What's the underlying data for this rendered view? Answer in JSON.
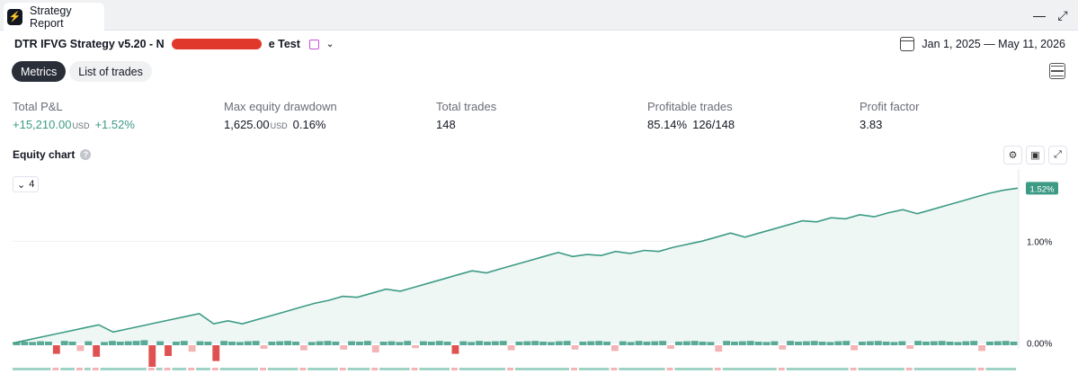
{
  "window": {
    "tab_title": "Strategy Report",
    "minimize_icon": "minimize-icon",
    "maximize_icon": "maximize-icon"
  },
  "header": {
    "strategy_prefix": "DTR IFVG Strategy v5.20 - N",
    "strategy_suffix": "e Test",
    "date_range": "Jan 1, 2025 — May 11, 2026"
  },
  "tabs": [
    {
      "label": "Metrics",
      "active": true
    },
    {
      "label": "List of trades",
      "active": false
    }
  ],
  "metrics": {
    "total_pnl": {
      "label": "Total P&L",
      "value": "+15,210.00",
      "unit": "USD",
      "pct": "+1.52%"
    },
    "max_dd": {
      "label": "Max equity drawdown",
      "value": "1,625.00",
      "unit": "USD",
      "pct": "0.16%"
    },
    "total_trades": {
      "label": "Total trades",
      "value": "148"
    },
    "profitable": {
      "label": "Profitable trades",
      "pct": "85.14%",
      "ratio": "126/148"
    },
    "profit_factor": {
      "label": "Profit factor",
      "value": "3.83"
    }
  },
  "equity_chart": {
    "title": "Equity chart",
    "help": "?",
    "collapse_count": "4"
  },
  "colors": {
    "accent_green": "#3d9b85",
    "loss_red": "#e05252",
    "loss_red_light": "#f2b4b4",
    "win_green_light": "#9fd3c5"
  },
  "chart_data": {
    "type": "line",
    "series": [
      {
        "values": [
          0.0,
          0.03,
          0.06,
          0.09,
          0.12,
          0.15,
          0.18,
          0.11,
          0.14,
          0.17,
          0.2,
          0.23,
          0.26,
          0.29,
          0.19,
          0.22,
          0.19,
          0.23,
          0.27,
          0.31,
          0.35,
          0.39,
          0.42,
          0.46,
          0.45,
          0.49,
          0.53,
          0.51,
          0.55,
          0.59,
          0.63,
          0.67,
          0.71,
          0.69,
          0.73,
          0.77,
          0.81,
          0.85,
          0.89,
          0.85,
          0.87,
          0.86,
          0.9,
          0.88,
          0.91,
          0.9,
          0.94,
          0.97,
          1.0,
          1.04,
          1.08,
          1.04,
          1.08,
          1.12,
          1.16,
          1.2,
          1.19,
          1.23,
          1.22,
          1.26,
          1.24,
          1.28,
          1.31,
          1.27,
          1.31,
          1.35,
          1.39,
          1.43,
          1.47,
          1.5,
          1.52
        ]
      }
    ],
    "y_ticks": [
      "1.00%",
      "0.00%"
    ],
    "y_tick_values": [
      1.0,
      0.0
    ],
    "last_value_label": "1.52%",
    "ylim": [
      -0.02,
      1.62
    ],
    "trade_bars": [
      0.4,
      0.5,
      0.45,
      0.55,
      0.5,
      -1.2,
      0.6,
      0.5,
      -0.8,
      0.55,
      -1.6,
      0.45,
      0.6,
      0.5,
      0.55,
      0.6,
      0.7,
      -3.0,
      0.55,
      -1.5,
      0.5,
      0.6,
      -0.9,
      0.55,
      0.5,
      -2.2,
      0.6,
      0.5,
      0.45,
      0.55,
      0.6,
      -0.5,
      0.5,
      0.55,
      0.6,
      0.5,
      -0.7,
      0.45,
      0.55,
      0.6,
      0.5,
      -0.6,
      0.55,
      0.5,
      0.6,
      -1.0,
      0.5,
      0.55,
      0.45,
      0.6,
      -0.4,
      0.55,
      0.5,
      0.6,
      0.5,
      -1.2,
      0.55,
      0.45,
      0.6,
      0.5,
      0.55,
      0.6,
      -0.7,
      0.5,
      0.55,
      0.6,
      0.5,
      0.45,
      0.55,
      0.6,
      -0.6,
      0.5,
      0.55,
      0.6,
      0.5,
      -0.8,
      0.55,
      0.45,
      0.6,
      0.5,
      0.55,
      0.6,
      -0.5,
      0.5,
      0.55,
      0.6,
      0.5,
      0.45,
      -0.9,
      0.6,
      0.5,
      0.55,
      0.6,
      0.5,
      0.45,
      0.55,
      -0.6,
      0.6,
      0.5,
      0.55,
      0.6,
      0.5,
      0.45,
      0.55,
      0.6,
      -0.7,
      0.5,
      0.55,
      0.6,
      0.5,
      0.45,
      0.55,
      -0.5,
      0.6,
      0.5,
      0.55,
      0.6,
      0.5,
      0.45,
      0.55,
      0.6,
      -0.8,
      0.5,
      0.55,
      0.6,
      0.5
    ]
  }
}
